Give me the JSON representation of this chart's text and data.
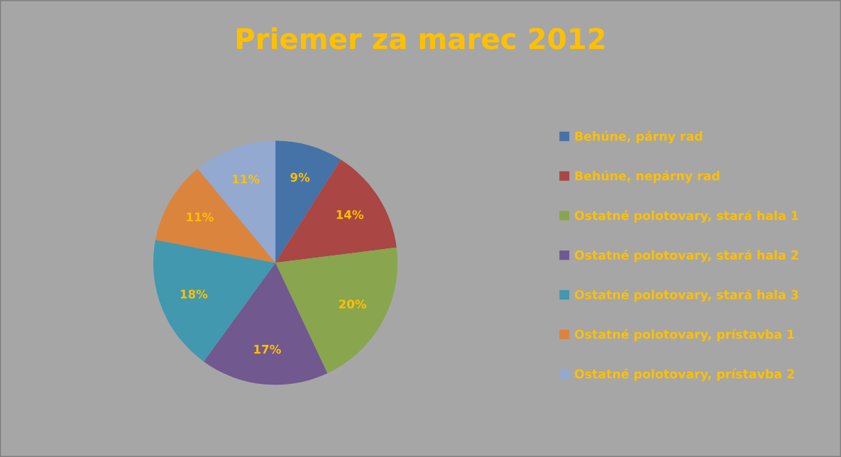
{
  "chart_data": {
    "type": "pie",
    "title": "Priemer za marec 2012",
    "categories": [
      "Behúne, párny rad",
      "Behúne, nepárny rad",
      "Ostatné polotovary, stará hala 1",
      "Ostatné polotovary, stará hala 2",
      "Ostatné polotovary, stará hala 3",
      "Ostatné polotovary, prístavba 1",
      "Ostatné polotovary, prístavba 2"
    ],
    "values": [
      9,
      14,
      20,
      17,
      18,
      11,
      11
    ],
    "value_labels": [
      "9%",
      "14%",
      "20%",
      "17%",
      "18%",
      "11%",
      "11%"
    ],
    "colors": [
      "#4572a7",
      "#aa4643",
      "#89a54e",
      "#71588f",
      "#4198af",
      "#db843d",
      "#93a9cf"
    ],
    "legend": "right"
  }
}
